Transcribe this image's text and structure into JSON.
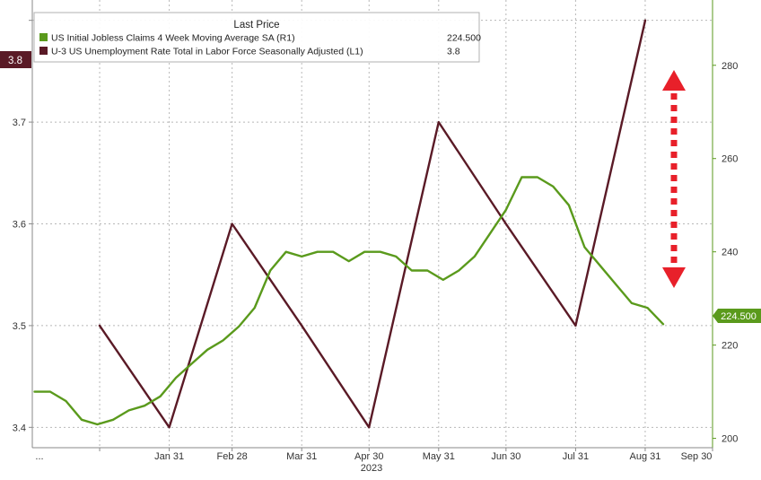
{
  "chart_data": {
    "type": "line",
    "legend": {
      "header": "Last Price",
      "placement": "top-left",
      "entries": [
        {
          "name": "US Initial Jobless Claims 4 Week Moving Average SA  (R1)",
          "last": "224.500",
          "color": "#5a9a1c",
          "axis": "right"
        },
        {
          "name": "U-3 US Unemployment Rate Total in Labor Force Seasonally Adjusted  (L1)",
          "last": "3.8",
          "color": "#5a1a26",
          "axis": "left"
        }
      ]
    },
    "x_axis": {
      "tick_labels": [
        "...",
        "Jan 31",
        "Feb 28",
        "Mar 31",
        "Apr 30",
        "May 31",
        "Jun 30",
        "Jul 31",
        "Aug 31",
        "Sep 30"
      ],
      "year_label": "2023",
      "range": [
        "2022-12-01",
        "2023-09-30"
      ]
    },
    "left_axis": {
      "ticks": [
        "3.4",
        "3.5",
        "3.6",
        "3.7",
        "3.8"
      ],
      "range": [
        3.38,
        3.82
      ]
    },
    "right_axis": {
      "ticks": [
        "200",
        "220",
        "240",
        "260",
        "280"
      ],
      "range": [
        198,
        294
      ]
    },
    "grid": true,
    "series": [
      {
        "name": "U-3 US Unemployment Rate Total in Labor Force Seasonally Adjusted  (L1)",
        "axis": "left",
        "color": "#5a1a26",
        "x": [
          "2022-12-31",
          "2023-01-31",
          "2023-02-28",
          "2023-03-31",
          "2023-04-30",
          "2023-05-31",
          "2023-06-30",
          "2023-07-31",
          "2023-08-31"
        ],
        "values": [
          3.5,
          3.4,
          3.6,
          3.5,
          3.4,
          3.7,
          3.6,
          3.5,
          3.8
        ]
      },
      {
        "name": "US Initial Jobless Claims 4 Week Moving Average SA  (R1)",
        "axis": "right",
        "color": "#5a9a1c",
        "x": [
          "2022-12-02",
          "2022-12-09",
          "2022-12-16",
          "2022-12-23",
          "2022-12-30",
          "2023-01-06",
          "2023-01-13",
          "2023-01-20",
          "2023-01-27",
          "2023-02-03",
          "2023-02-10",
          "2023-02-17",
          "2023-02-24",
          "2023-03-03",
          "2023-03-10",
          "2023-03-17",
          "2023-03-24",
          "2023-03-31",
          "2023-04-07",
          "2023-04-14",
          "2023-04-21",
          "2023-04-28",
          "2023-05-05",
          "2023-05-12",
          "2023-05-19",
          "2023-05-26",
          "2023-06-02",
          "2023-06-09",
          "2023-06-16",
          "2023-06-23",
          "2023-06-30",
          "2023-07-07",
          "2023-07-14",
          "2023-07-21",
          "2023-07-28",
          "2023-08-04",
          "2023-08-11",
          "2023-08-18",
          "2023-08-25",
          "2023-09-01",
          "2023-09-08"
        ],
        "values": [
          210,
          210,
          208,
          204,
          203,
          204,
          206,
          207,
          209,
          213,
          216,
          219,
          221,
          224,
          228,
          236,
          240,
          239,
          240,
          240,
          238,
          240,
          240,
          239,
          236,
          236,
          234,
          236,
          239,
          244,
          249,
          256,
          256,
          254,
          250,
          241,
          237,
          233,
          229,
          228,
          224.5
        ]
      }
    ],
    "last_value_label": "224.500",
    "annotation": "red-dotted-double-arrow"
  }
}
